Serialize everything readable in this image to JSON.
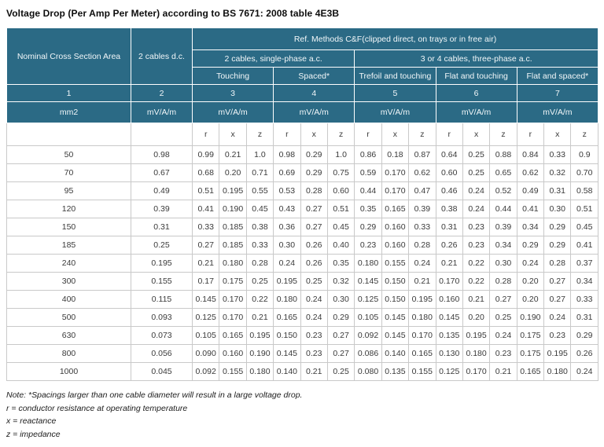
{
  "title": "Voltage Drop (Per Amp Per Meter) according to BS 7671: 2008 table 4E3B",
  "colors": {
    "header_teal": "#2b6a85",
    "data_border": "#c9c9c9",
    "data_text": "#3a3a3a"
  },
  "table": {
    "col1_header": "Nominal Cross Section Area",
    "col2_header": "2 cables d.c.",
    "ref_methods_header": "Ref. Methods C&F(clipped direct, on trays or in free air)",
    "single_phase_header": "2 cables, single-phase a.c.",
    "three_phase_header": "3 or 4 cables, three-phase a.c.",
    "arrangements": [
      "Touching",
      "Spaced*",
      "Trefoil and touching",
      "Flat and touching",
      "Flat and spaced*"
    ],
    "column_numbers": [
      "1",
      "2",
      "3",
      "4",
      "5",
      "6",
      "7"
    ],
    "units": [
      "mm2",
      "mV/A/m",
      "mV/A/m",
      "mV/A/m",
      "mV/A/m",
      "mV/A/m",
      "mV/A/m"
    ],
    "rxz": [
      "r",
      "x",
      "z"
    ],
    "rows": [
      {
        "size": "50",
        "dc": "0.98",
        "values": [
          "0.99",
          "0.21",
          "1.0",
          "0.98",
          "0.29",
          "1.0",
          "0.86",
          "0.18",
          "0.87",
          "0.64",
          "0.25",
          "0.88",
          "0.84",
          "0.33",
          "0.9"
        ]
      },
      {
        "size": "70",
        "dc": "0.67",
        "values": [
          "0.68",
          "0.20",
          "0.71",
          "0.69",
          "0.29",
          "0.75",
          "0.59",
          "0.170",
          "0.62",
          "0.60",
          "0.25",
          "0.65",
          "0.62",
          "0.32",
          "0.70"
        ]
      },
      {
        "size": "95",
        "dc": "0.49",
        "values": [
          "0.51",
          "0.195",
          "0.55",
          "0.53",
          "0.28",
          "0.60",
          "0.44",
          "0.170",
          "0.47",
          "0.46",
          "0.24",
          "0.52",
          "0.49",
          "0.31",
          "0.58"
        ]
      },
      {
        "size": "120",
        "dc": "0.39",
        "values": [
          "0.41",
          "0.190",
          "0.45",
          "0.43",
          "0.27",
          "0.51",
          "0.35",
          "0.165",
          "0.39",
          "0.38",
          "0.24",
          "0.44",
          "0.41",
          "0.30",
          "0.51"
        ]
      },
      {
        "size": "150",
        "dc": "0.31",
        "values": [
          "0.33",
          "0.185",
          "0.38",
          "0.36",
          "0.27",
          "0.45",
          "0.29",
          "0.160",
          "0.33",
          "0.31",
          "0.23",
          "0.39",
          "0.34",
          "0.29",
          "0.45"
        ]
      },
      {
        "size": "185",
        "dc": "0.25",
        "values": [
          "0.27",
          "0.185",
          "0.33",
          "0.30",
          "0.26",
          "0.40",
          "0.23",
          "0.160",
          "0.28",
          "0.26",
          "0.23",
          "0.34",
          "0.29",
          "0.29",
          "0.41"
        ]
      },
      {
        "size": "240",
        "dc": "0.195",
        "values": [
          "0.21",
          "0.180",
          "0.28",
          "0.24",
          "0.26",
          "0.35",
          "0.180",
          "0.155",
          "0.24",
          "0.21",
          "0.22",
          "0.30",
          "0.24",
          "0.28",
          "0.37"
        ]
      },
      {
        "size": "300",
        "dc": "0.155",
        "values": [
          "0.17",
          "0.175",
          "0.25",
          "0.195",
          "0.25",
          "0.32",
          "0.145",
          "0.150",
          "0.21",
          "0.170",
          "0.22",
          "0.28",
          "0.20",
          "0.27",
          "0.34"
        ]
      },
      {
        "size": "400",
        "dc": "0.115",
        "values": [
          "0.145",
          "0.170",
          "0.22",
          "0.180",
          "0.24",
          "0.30",
          "0.125",
          "0.150",
          "0.195",
          "0.160",
          "0.21",
          "0.27",
          "0.20",
          "0.27",
          "0.33"
        ]
      },
      {
        "size": "500",
        "dc": "0.093",
        "values": [
          "0.125",
          "0.170",
          "0.21",
          "0.165",
          "0.24",
          "0.29",
          "0.105",
          "0.145",
          "0.180",
          "0.145",
          "0.20",
          "0.25",
          "0.190",
          "0.24",
          "0.31"
        ]
      },
      {
        "size": "630",
        "dc": "0.073",
        "values": [
          "0.105",
          "0.165",
          "0.195",
          "0.150",
          "0.23",
          "0.27",
          "0.092",
          "0.145",
          "0.170",
          "0.135",
          "0.195",
          "0.24",
          "0.175",
          "0.23",
          "0.29"
        ]
      },
      {
        "size": "800",
        "dc": "0.056",
        "values": [
          "0.090",
          "0.160",
          "0.190",
          "0.145",
          "0.23",
          "0.27",
          "0.086",
          "0.140",
          "0.165",
          "0.130",
          "0.180",
          "0.23",
          "0.175",
          "0.195",
          "0.26"
        ]
      },
      {
        "size": "1000",
        "dc": "0.045",
        "values": [
          "0.092",
          "0.155",
          "0.180",
          "0.140",
          "0.21",
          "0.25",
          "0.080",
          "0.135",
          "0.155",
          "0.125",
          "0.170",
          "0.21",
          "0.165",
          "0.180",
          "0.24"
        ]
      }
    ]
  },
  "notes": [
    "Note: *Spacings larger than one cable diameter will result in a large voltage drop.",
    "r = conductor resistance at operating temperature",
    "x = reactance",
    "z = impedance"
  ]
}
